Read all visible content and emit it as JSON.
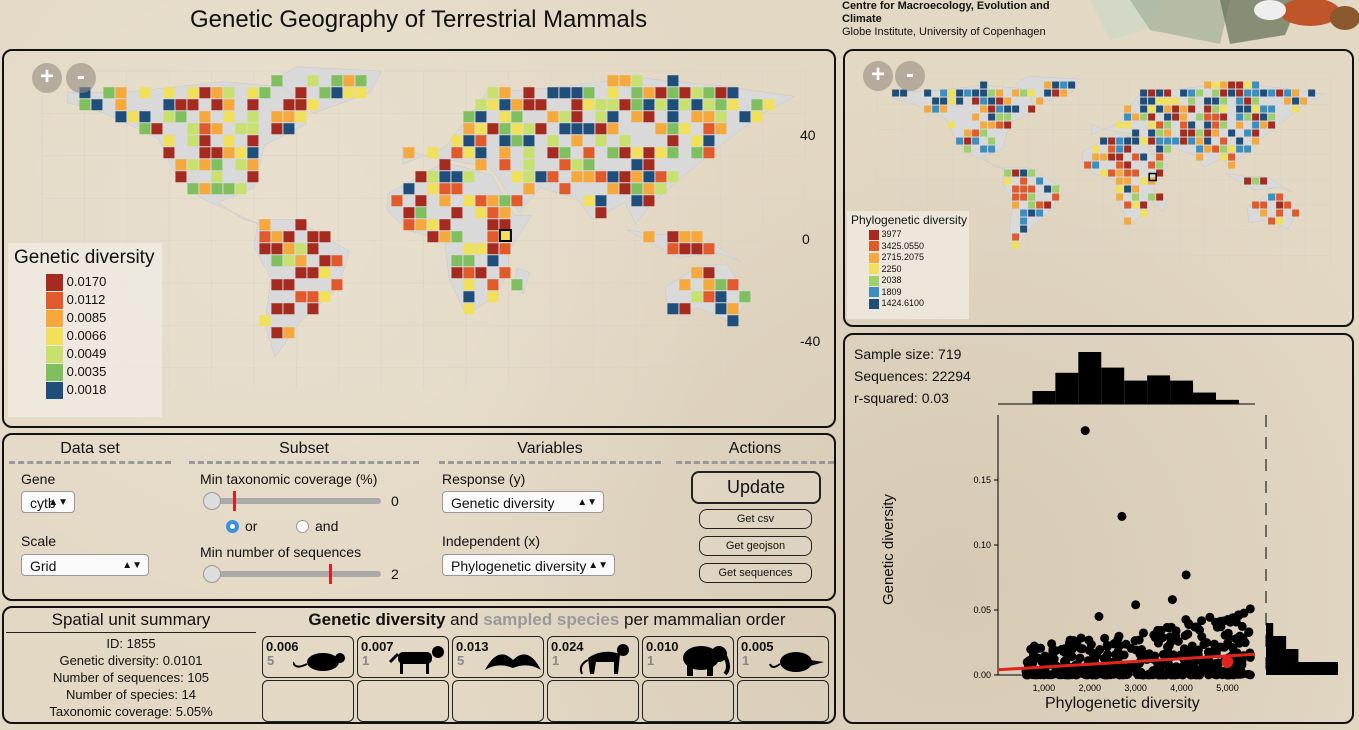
{
  "header": {
    "title": "Genetic Geography of Terrestrial Mammals",
    "institute_line1": "Centre for Macroecology, Evolution and Climate",
    "institute_line2": "Globe Institute, University of Copenhagen"
  },
  "map_main": {
    "zoom_in": "+",
    "zoom_out": "-",
    "lat_labels": [
      "40",
      "0",
      "-40"
    ],
    "legend": {
      "title": "Genetic diversity",
      "items": [
        {
          "label": "0.0170",
          "color": "#a52a1f"
        },
        {
          "label": "0.0112",
          "color": "#e05a2b"
        },
        {
          "label": "0.0085",
          "color": "#f5a83c"
        },
        {
          "label": "0.0066",
          "color": "#f0e05a"
        },
        {
          "label": "0.0049",
          "color": "#c8e06e"
        },
        {
          "label": "0.0035",
          "color": "#7fbf5f"
        },
        {
          "label": "0.0018",
          "color": "#1f4e7a"
        }
      ]
    }
  },
  "map_small": {
    "zoom_in": "+",
    "zoom_out": "-",
    "legend": {
      "title": "Phylogenetic diversity",
      "items": [
        {
          "label": "3977",
          "color": "#a52a1f"
        },
        {
          "label": "3425.0550",
          "color": "#e05a2b"
        },
        {
          "label": "2715.2075",
          "color": "#f5a83c"
        },
        {
          "label": "2250",
          "color": "#f0e05a"
        },
        {
          "label": "2038",
          "color": "#9fcf6a"
        },
        {
          "label": "1809",
          "color": "#3a8fc0"
        },
        {
          "label": "1424.6100",
          "color": "#1f4e7a"
        }
      ]
    }
  },
  "stats": {
    "sample_size": "Sample size: 719",
    "sequences": "Sequences: 22294",
    "r_squared": "r-squared: 0.03"
  },
  "scatter": {
    "xlabel": "Phylogenetic diversity",
    "ylabel": "Genetic diversity",
    "xticks": [
      "1,000",
      "2,000",
      "3,000",
      "4,000",
      "5,000"
    ],
    "yticks": [
      "0.00",
      "0.05",
      "0.10",
      "0.15"
    ]
  },
  "chart_data": {
    "type": "scatter",
    "xlabel": "Phylogenetic diversity",
    "ylabel": "Genetic diversity",
    "xlim": [
      0,
      5600
    ],
    "ylim": [
      0,
      0.2
    ],
    "outliers": [
      [
        1900,
        0.188
      ],
      [
        2700,
        0.122
      ],
      [
        4100,
        0.077
      ],
      [
        3800,
        0.058
      ],
      [
        3000,
        0.054
      ],
      [
        2200,
        0.045
      ]
    ],
    "trend": [
      [
        0,
        0.004
      ],
      [
        5600,
        0.016
      ]
    ],
    "top_hist": [
      {
        "x": 1000,
        "v": 0.25
      },
      {
        "x": 1500,
        "v": 0.6
      },
      {
        "x": 2000,
        "v": 1.0
      },
      {
        "x": 2500,
        "v": 0.7
      },
      {
        "x": 3000,
        "v": 0.45
      },
      {
        "x": 3500,
        "v": 0.55
      },
      {
        "x": 4000,
        "v": 0.45
      },
      {
        "x": 4500,
        "v": 0.22
      },
      {
        "x": 5000,
        "v": 0.08
      }
    ],
    "side_hist": [
      {
        "y": 0.0,
        "v": 1.0
      },
      {
        "y": 0.01,
        "v": 0.45
      },
      {
        "y": 0.02,
        "v": 0.28
      },
      {
        "y": 0.03,
        "v": 0.1
      }
    ]
  },
  "controls": {
    "dataset_header": "Data set",
    "subset_header": "Subset",
    "variables_header": "Variables",
    "actions_header": "Actions",
    "gene_label": "Gene",
    "gene_value": "cytb",
    "scale_label": "Scale",
    "scale_value": "Grid",
    "min_tax_label": "Min taxonomic coverage (%)",
    "min_tax_value": "0",
    "or_label": "or",
    "and_label": "and",
    "min_seq_label": "Min number of sequences",
    "min_seq_value": "2",
    "response_label": "Response (y)",
    "response_value": "Genetic diversity",
    "independent_label": "Independent (x)",
    "independent_value": "Phylogenetic diversity",
    "update": "Update",
    "get_csv": "Get csv",
    "get_geojson": "Get geojson",
    "get_sequences": "Get sequences"
  },
  "summary": {
    "title": "Spatial unit summary",
    "id": "ID: 1855",
    "gd": "Genetic diversity: 0.0101",
    "nseq": "Number of sequences: 105",
    "nspec": "Number of species: 14",
    "tax": "Taxonomic coverage: 5.05%"
  },
  "orders": {
    "title_a": "Genetic diversity",
    "title_b": " and ",
    "title_c": "sampled species",
    "title_d": " per mammalian order",
    "items": [
      {
        "value": "0.006",
        "n": "5",
        "icon": "rodent-icon"
      },
      {
        "value": "0.007",
        "n": "1",
        "icon": "carnivore-icon"
      },
      {
        "value": "0.013",
        "n": "5",
        "icon": "bat-icon"
      },
      {
        "value": "0.024",
        "n": "1",
        "icon": "primate-icon"
      },
      {
        "value": "0.010",
        "n": "1",
        "icon": "elephant-icon"
      },
      {
        "value": "0.005",
        "n": "1",
        "icon": "shrew-icon"
      }
    ]
  }
}
